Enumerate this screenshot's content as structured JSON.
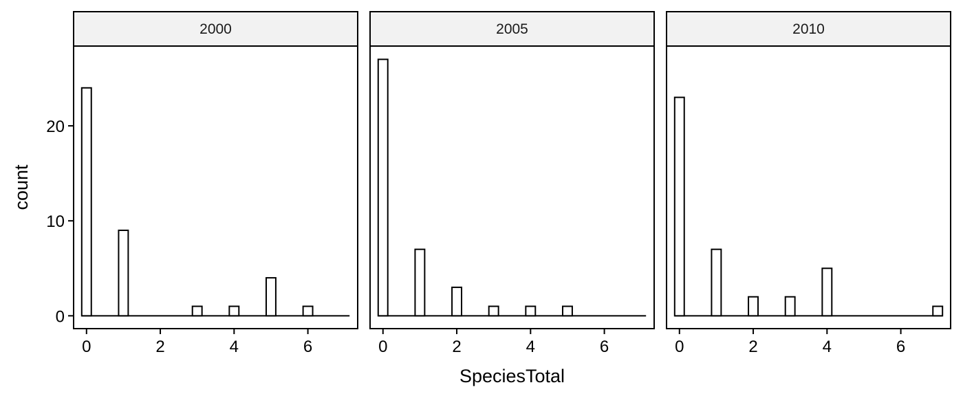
{
  "chart_data": {
    "type": "bar",
    "xlabel": "SpeciesTotal",
    "ylabel": "count",
    "xlim": [
      -0.35,
      7.35
    ],
    "ylim": [
      -1.35,
      28.4
    ],
    "x_ticks": [
      0,
      2,
      4,
      6
    ],
    "y_ticks": [
      0,
      10,
      20
    ],
    "x_tick_labels": [
      "0",
      "2",
      "4",
      "6"
    ],
    "y_tick_labels": [
      "0",
      "10",
      "20"
    ],
    "bin_width": 0.26,
    "grid": false,
    "facets": [
      {
        "label": "2000",
        "x": [
          0,
          1,
          2,
          3,
          4,
          5,
          6,
          7
        ],
        "values": [
          24,
          9,
          0,
          1,
          1,
          4,
          1,
          0
        ]
      },
      {
        "label": "2005",
        "x": [
          0,
          1,
          2,
          3,
          4,
          5,
          6,
          7
        ],
        "values": [
          27,
          7,
          3,
          1,
          1,
          1,
          0,
          0
        ]
      },
      {
        "label": "2010",
        "x": [
          0,
          1,
          2,
          3,
          4,
          5,
          6,
          7
        ],
        "values": [
          23,
          7,
          2,
          2,
          5,
          0,
          0,
          1
        ]
      }
    ]
  }
}
